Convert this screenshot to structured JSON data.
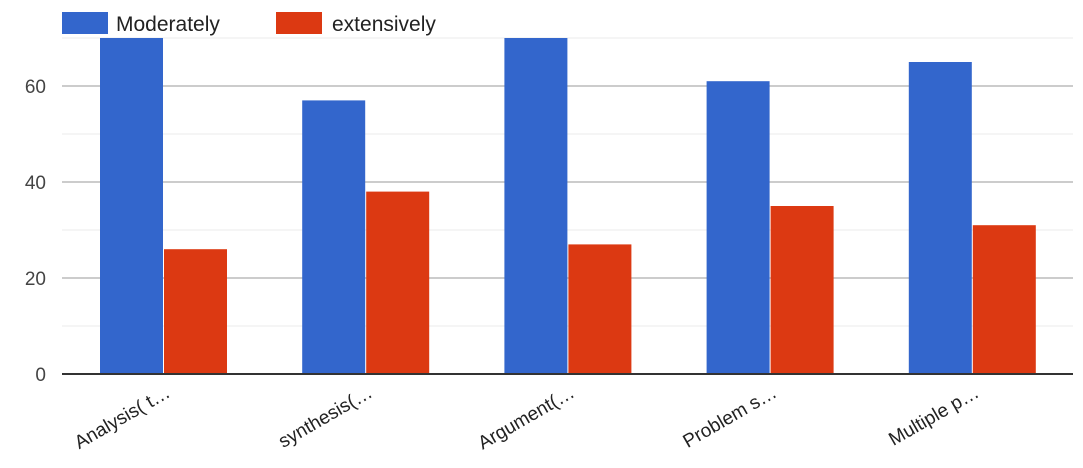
{
  "chart_data": {
    "type": "bar",
    "categories": [
      "Analysis( t…",
      "synthesis(…",
      "Argument(…",
      "Problem s…",
      "Multiple p…"
    ],
    "series": [
      {
        "name": "Moderately",
        "color": "#3366cc",
        "values": [
          70,
          57,
          70,
          61,
          65
        ]
      },
      {
        "name": "extensively",
        "color": "#dc3912",
        "values": [
          26,
          38,
          27,
          35,
          31
        ]
      }
    ],
    "yticks": [
      0,
      20,
      40,
      60
    ],
    "ylim": [
      0,
      72
    ],
    "grid": true,
    "legend": "top-left"
  }
}
